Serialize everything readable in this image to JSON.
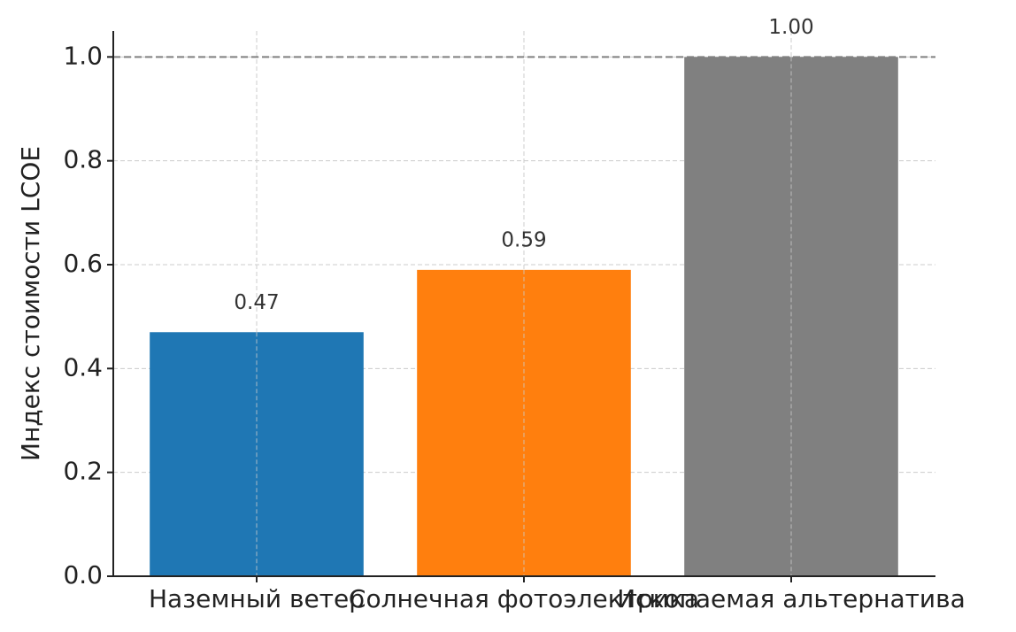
{
  "chart_data": {
    "type": "bar",
    "y_label": "Индекс стоимости LCOE",
    "categories": [
      "Наземный ветер",
      "Солнечная фотоэлектрика",
      "Ископаемая альтернатива"
    ],
    "values": [
      0.47,
      0.59,
      1.0
    ],
    "value_labels": [
      "0.47",
      "0.59",
      "1.00"
    ],
    "colors": [
      "#1f77b4",
      "#ff7f0e",
      "#808080"
    ],
    "ylim": [
      0,
      1.05
    ],
    "yticks": [
      {
        "value": 0,
        "label": "0.0"
      },
      0.2,
      0.4,
      0.6,
      0.8,
      {
        "value": 1,
        "label": "1.0"
      }
    ],
    "reference_line": 1,
    "grid": true
  }
}
